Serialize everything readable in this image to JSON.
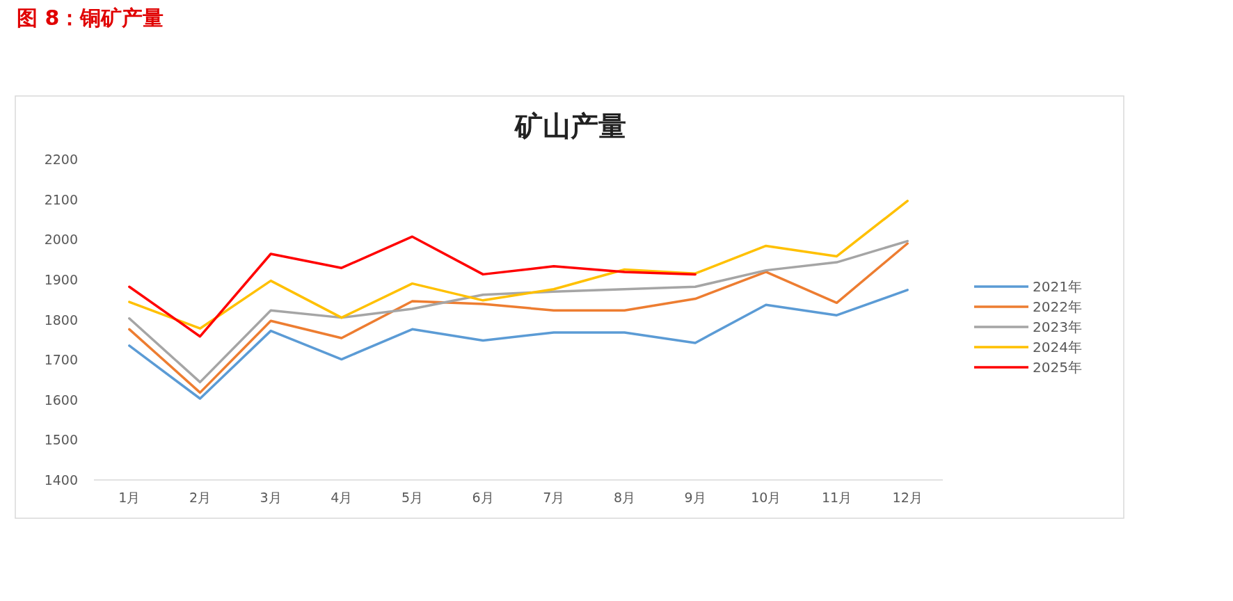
{
  "chart_data": {
    "type": "line",
    "title": "图 8：铜矿产量",
    "subtitle": "矿山产量",
    "categories": [
      "1月",
      "2月",
      "3月",
      "4月",
      "5月",
      "6月",
      "7月",
      "8月",
      "9月",
      "10月",
      "11月",
      "12月"
    ],
    "series": [
      {
        "name": "2021年",
        "color": "#5b9bd5",
        "values": [
          1735,
          1603,
          1772,
          1701,
          1776,
          1748,
          1768,
          1768,
          1742,
          1837,
          1811,
          1874
        ]
      },
      {
        "name": "2022年",
        "color": "#ed7d31",
        "values": [
          1776,
          1618,
          1797,
          1754,
          1846,
          1839,
          1823,
          1823,
          1852,
          1919,
          1842,
          1990
        ]
      },
      {
        "name": "2023年",
        "color": "#a5a5a5",
        "values": [
          1803,
          1644,
          1823,
          1805,
          1827,
          1862,
          1870,
          1876,
          1882,
          1923,
          1943,
          1996
        ]
      },
      {
        "name": "2024年",
        "color": "#ffc000",
        "values": [
          1844,
          1778,
          1897,
          1805,
          1890,
          1848,
          1876,
          1925,
          1915,
          1984,
          1958,
          2096
        ]
      },
      {
        "name": "2025年",
        "color": "#ff0000",
        "values": [
          1882,
          1758,
          1964,
          1929,
          2007,
          1913,
          1933,
          1919,
          1913,
          null,
          null,
          null
        ]
      }
    ],
    "ylim": [
      1400,
      2200
    ],
    "yticks": [
      1400,
      1500,
      1600,
      1700,
      1800,
      1900,
      2000,
      2100,
      2200
    ],
    "grid": false,
    "legend": "right",
    "marker": "none",
    "line_style": "solid"
  }
}
